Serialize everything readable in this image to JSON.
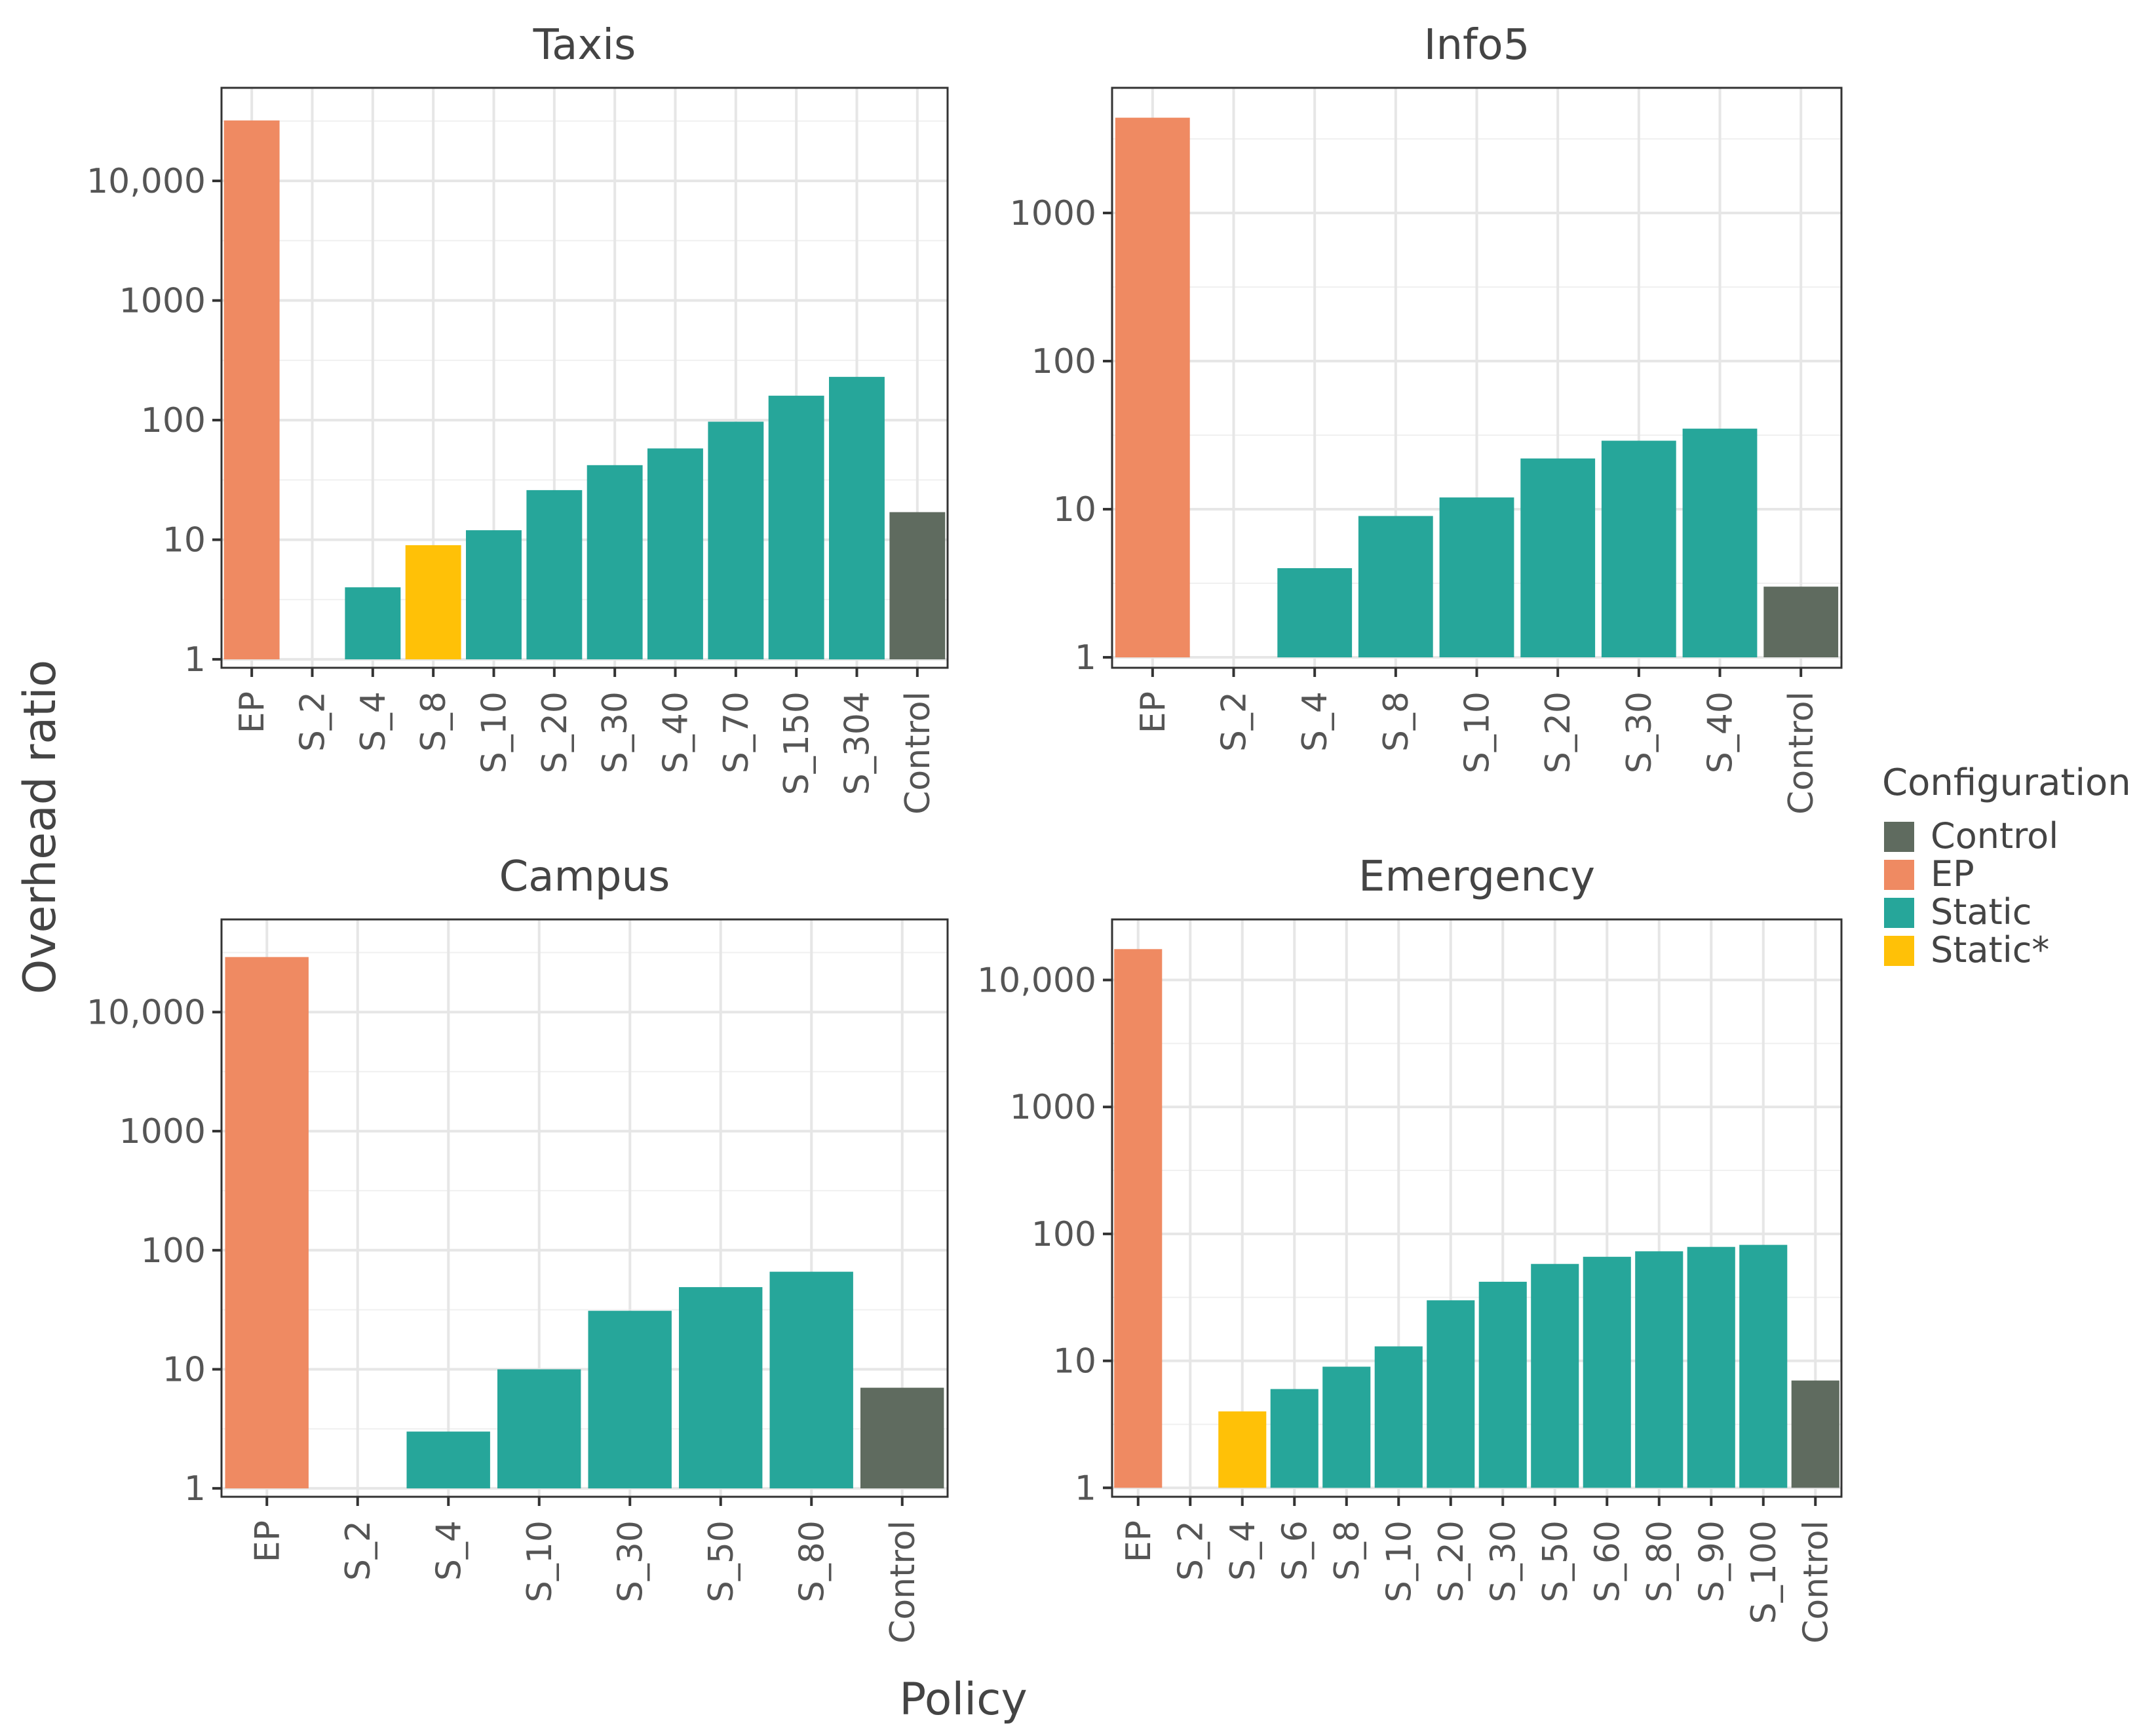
{
  "chart_data": {
    "type": "bar",
    "scale": "log10",
    "ylabel": "Overhead ratio",
    "xlabel": "Policy",
    "legend": {
      "title": "Configuration",
      "placement": "right",
      "items": [
        {
          "name": "Control",
          "color": "#5f6b5f"
        },
        {
          "name": "EP",
          "color": "#ef8a62"
        },
        {
          "name": "Static",
          "color": "#26a69a"
        },
        {
          "name": "Static*",
          "color": "#ffc107"
        }
      ]
    },
    "panels": [
      {
        "title": "Taxis",
        "categories": [
          "EP",
          "S_2",
          "S_4",
          "S_8",
          "S_10",
          "S_20",
          "S_30",
          "S_40",
          "S_70",
          "S_150",
          "S_304",
          "Control"
        ],
        "values": [
          32000,
          1,
          4,
          9,
          12,
          26,
          42,
          58,
          97,
          160,
          230,
          17
        ],
        "groups": [
          "EP",
          "Static",
          "Static",
          "Static*",
          "Static",
          "Static",
          "Static",
          "Static",
          "Static",
          "Static",
          "Static",
          "Control"
        ],
        "yticks": [
          1,
          10,
          100,
          1000,
          10000
        ],
        "yticklabels": [
          "1",
          "10",
          "100",
          "1000",
          "10,000"
        ],
        "ylim": [
          0.85,
          60000
        ]
      },
      {
        "title": "Info5",
        "categories": [
          "EP",
          "S_2",
          "S_4",
          "S_8",
          "S_10",
          "S_20",
          "S_30",
          "S_40",
          "Control"
        ],
        "values": [
          4400,
          1,
          4,
          9,
          12,
          22,
          29,
          35,
          3
        ],
        "groups": [
          "EP",
          "Static",
          "Static",
          "Static",
          "Static",
          "Static",
          "Static",
          "Static",
          "Control"
        ],
        "yticks": [
          1,
          10,
          100,
          1000
        ],
        "yticklabels": [
          "1",
          "10",
          "100",
          "1000"
        ],
        "ylim": [
          0.85,
          7000
        ]
      },
      {
        "title": "Campus",
        "categories": [
          "EP",
          "S_2",
          "S_4",
          "S_10",
          "S_30",
          "S_50",
          "S_80",
          "Control"
        ],
        "values": [
          29000,
          1,
          3,
          10,
          31,
          49,
          66,
          7
        ],
        "groups": [
          "EP",
          "Static",
          "Static",
          "Static",
          "Static",
          "Static",
          "Static",
          "Control"
        ],
        "yticks": [
          1,
          10,
          100,
          1000,
          10000
        ],
        "yticklabels": [
          "1",
          "10",
          "100",
          "1000",
          "10,000"
        ],
        "ylim": [
          0.85,
          60000
        ]
      },
      {
        "title": "Emergency",
        "categories": [
          "EP",
          "S_2",
          "S_4",
          "S_6",
          "S_8",
          "S_10",
          "S_20",
          "S_30",
          "S_50",
          "S_60",
          "S_80",
          "S_90",
          "S_100",
          "Control"
        ],
        "values": [
          17500,
          1,
          4,
          6,
          9,
          13,
          30,
          42,
          58,
          66,
          73,
          79,
          82,
          7
        ],
        "groups": [
          "EP",
          "Static",
          "Static*",
          "Static",
          "Static",
          "Static",
          "Static",
          "Static",
          "Static",
          "Static",
          "Static",
          "Static",
          "Static",
          "Control"
        ],
        "yticks": [
          1,
          10,
          100,
          1000,
          10000
        ],
        "yticklabels": [
          "1",
          "10",
          "100",
          "1000",
          "10,000"
        ],
        "ylim": [
          0.85,
          30000
        ]
      }
    ]
  }
}
